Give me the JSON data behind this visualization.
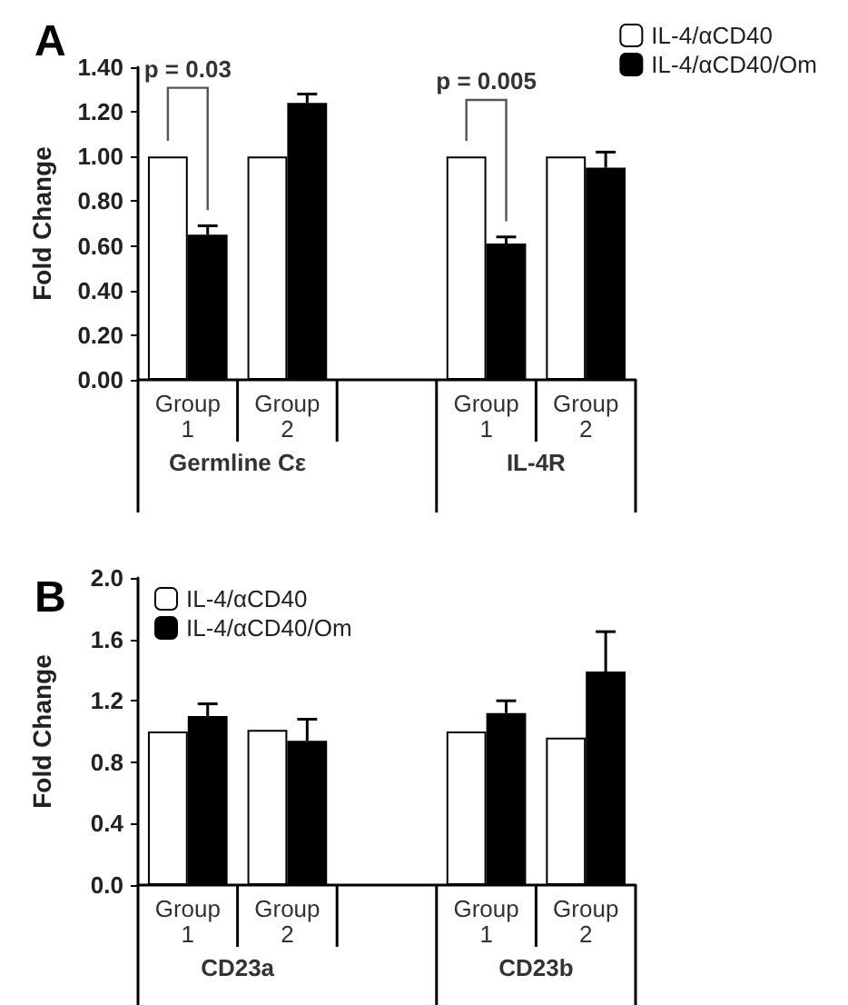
{
  "chart_data": [
    {
      "type": "bar",
      "title": "A",
      "ylabel": "Fold Change",
      "categories": [
        "Group 1",
        "Group 2",
        null,
        "Group 1",
        "Group 2"
      ],
      "series": [
        {
          "name": "IL-4/αCD40",
          "color": "#ffffff",
          "values": [
            1.0,
            1.0,
            null,
            1.0,
            1.0
          ],
          "errors": [
            null,
            null,
            null,
            null,
            null
          ]
        },
        {
          "name": "IL-4/αCD40/Om",
          "color": "#000000",
          "values": [
            0.65,
            1.24,
            null,
            0.61,
            0.95
          ],
          "errors": [
            0.04,
            0.04,
            null,
            0.03,
            0.07
          ]
        }
      ],
      "ylim": [
        0,
        1.4
      ],
      "yticks": [
        {
          "value": 0,
          "label": "0.00"
        },
        {
          "value": 0.2,
          "label": "0.20"
        },
        {
          "value": 0.4,
          "label": "0.40"
        },
        {
          "value": 0.6,
          "label": "0.60"
        },
        {
          "value": 0.8,
          "label": "0.80"
        },
        {
          "value": 1,
          "label": "1.00"
        },
        {
          "value": 1.2,
          "label": "1.20"
        },
        {
          "value": 1.4,
          "label": "1.40"
        }
      ],
      "annotations": [
        "p = 0.03",
        "p = 0.005",
        "Germline Cε",
        "IL-4R"
      ],
      "legend": "top right",
      "grid": false
    },
    {
      "type": "bar",
      "title": "B",
      "ylabel": "Fold Change",
      "categories": [
        "Group 1",
        "Group 2",
        null,
        "Group 1",
        "Group 2"
      ],
      "series": [
        {
          "name": "IL-4/αCD40",
          "color": "#ffffff",
          "values": [
            1.0,
            1.01,
            null,
            1.0,
            0.96
          ],
          "errors": [
            null,
            null,
            null,
            null,
            null
          ]
        },
        {
          "name": "IL-4/αCD40/Om",
          "color": "#000000",
          "values": [
            1.1,
            0.94,
            null,
            1.12,
            1.39
          ],
          "errors": [
            0.08,
            0.14,
            null,
            0.08,
            0.26
          ]
        }
      ],
      "ylim": [
        0,
        2
      ],
      "yticks": [
        {
          "value": 0,
          "label": "0.0"
        },
        0.4,
        0.8,
        1.2,
        1.6,
        {
          "value": 2,
          "label": "2.0"
        }
      ],
      "annotations": [
        "CD23a",
        "CD23b"
      ],
      "legend": "top left",
      "grid": false
    }
  ]
}
